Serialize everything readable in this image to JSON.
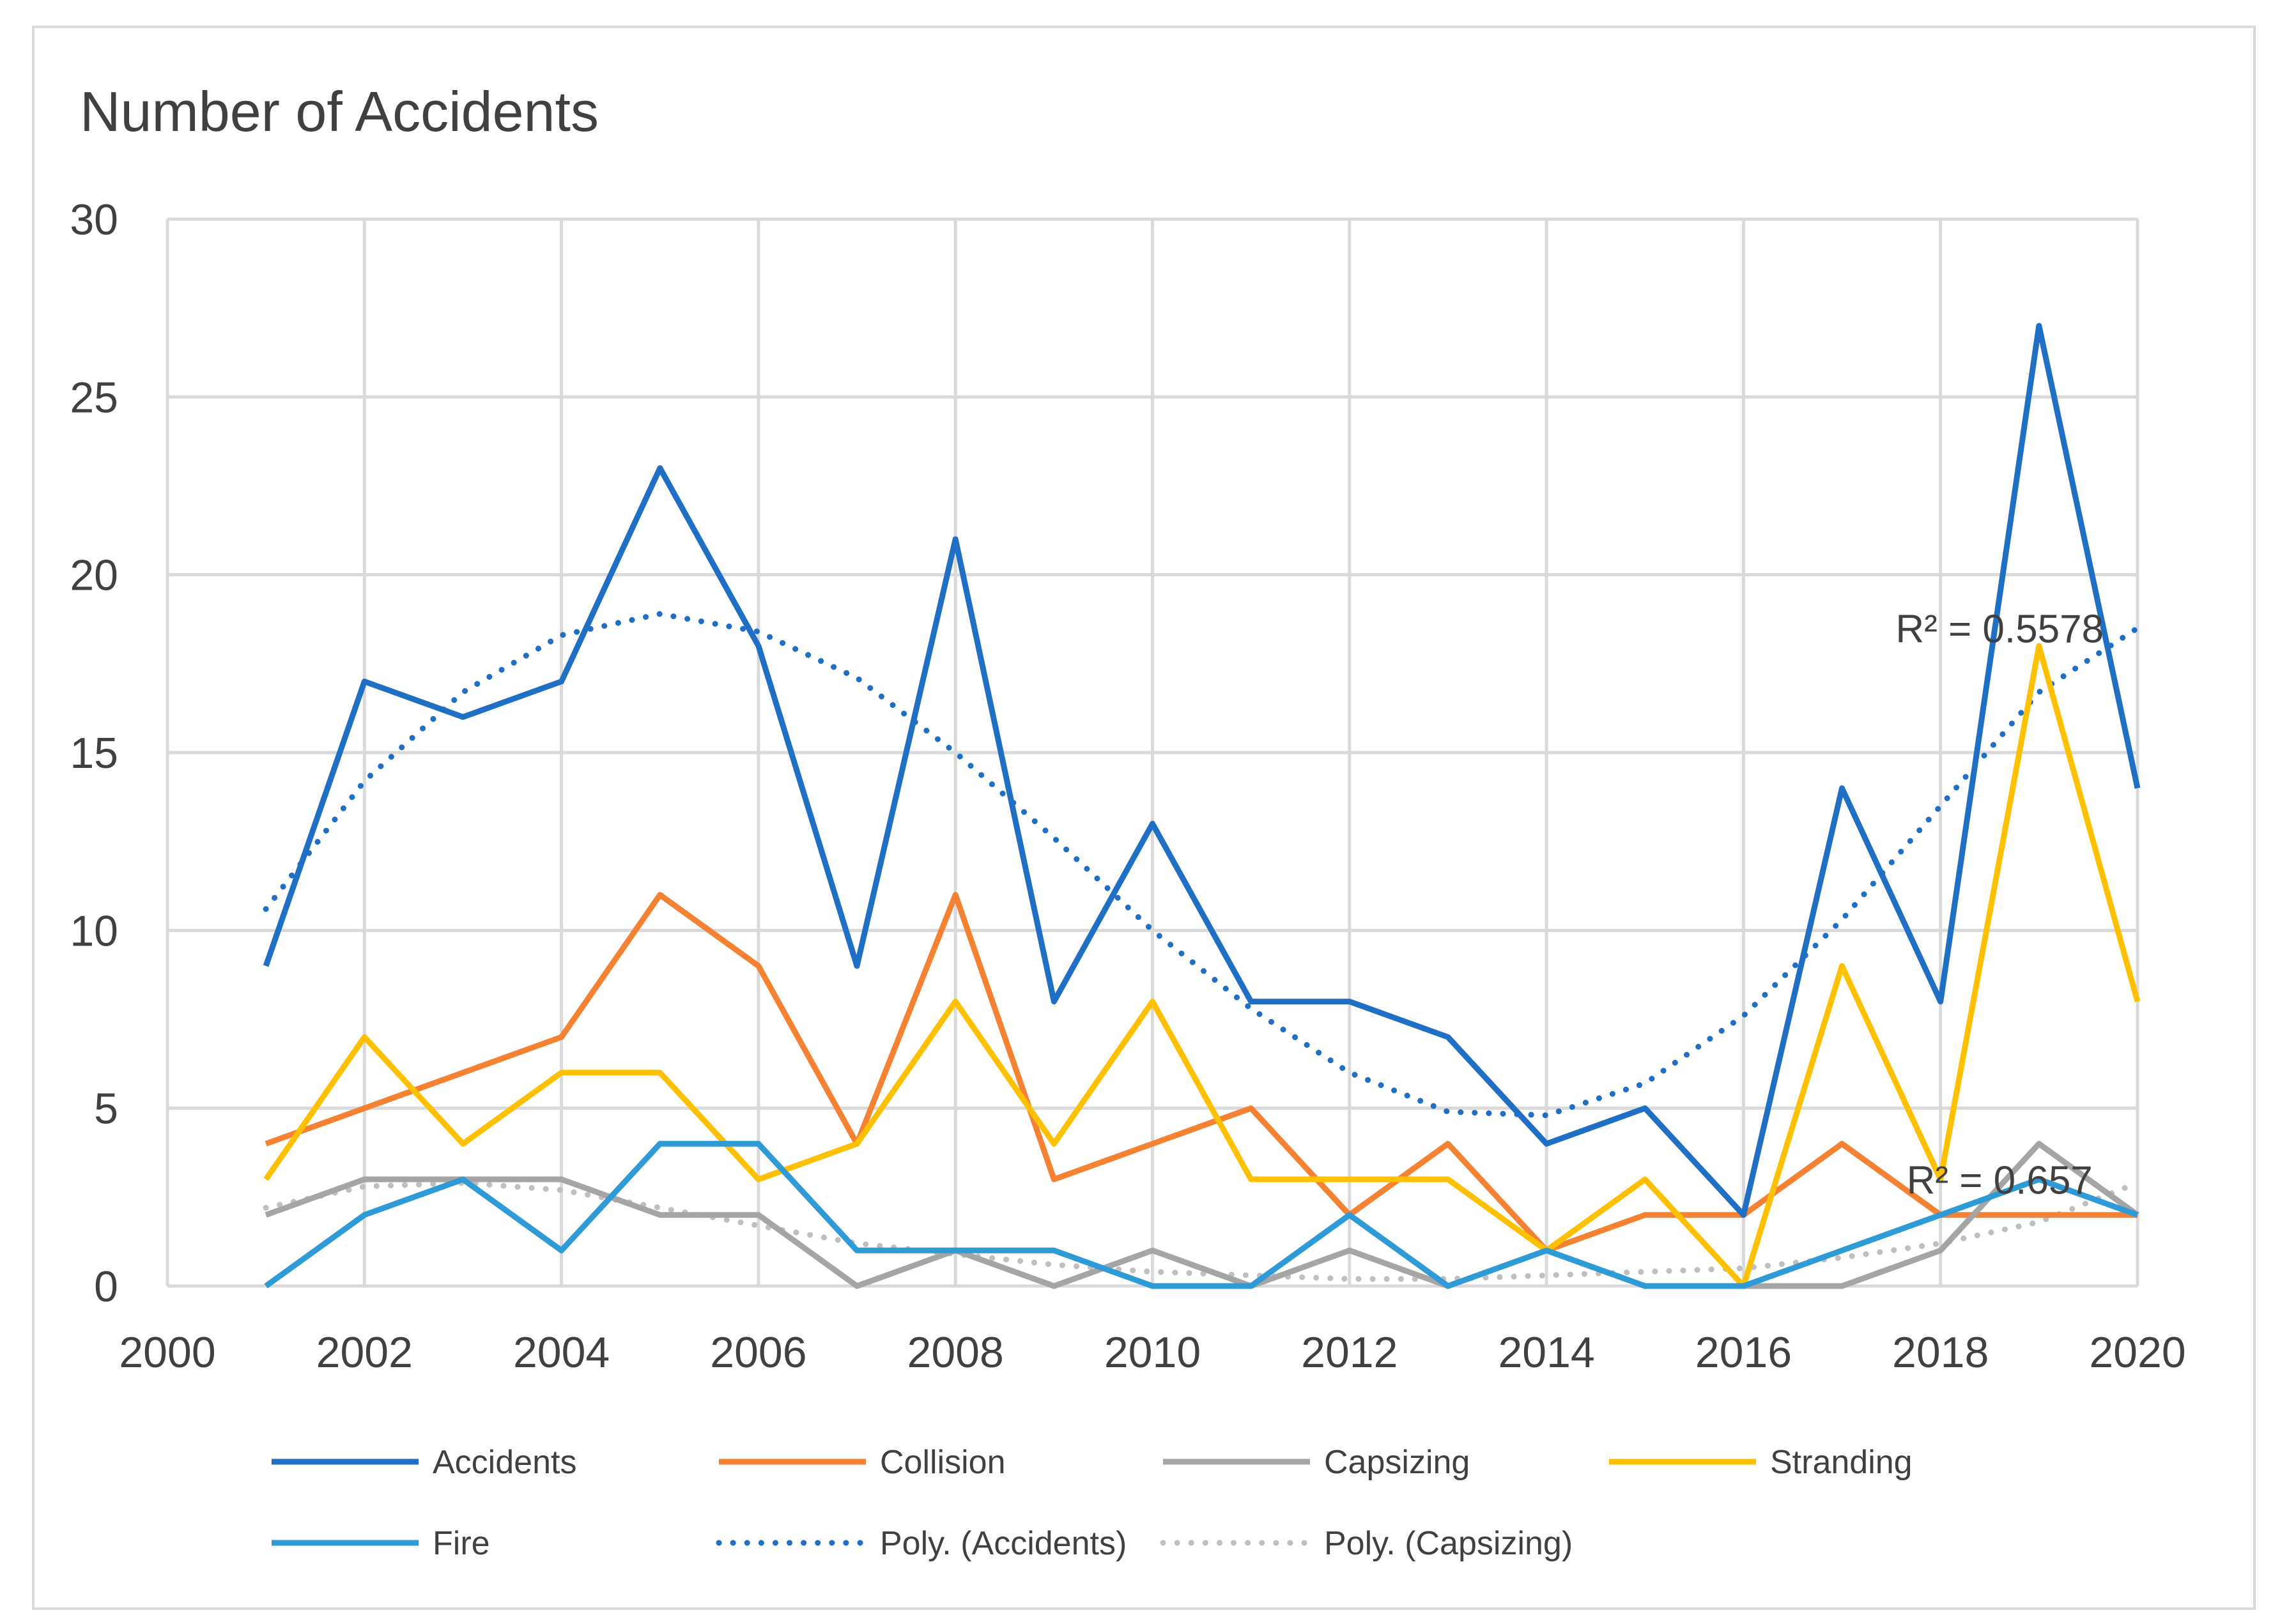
{
  "chart_data": {
    "type": "line",
    "title": "Number of Accidents",
    "xlabel": "",
    "ylabel": "",
    "xlim": [
      2000,
      2020
    ],
    "ylim": [
      0,
      30
    ],
    "xticks": [
      2000,
      2002,
      2004,
      2006,
      2008,
      2010,
      2012,
      2014,
      2016,
      2018,
      2020
    ],
    "yticks": [
      0,
      5,
      10,
      15,
      20,
      25,
      30
    ],
    "grid": true,
    "legend_position": "bottom",
    "x": [
      2001,
      2002,
      2003,
      2004,
      2005,
      2006,
      2007,
      2008,
      2009,
      2010,
      2011,
      2012,
      2013,
      2014,
      2015,
      2016,
      2017,
      2018,
      2019,
      2020
    ],
    "series": [
      {
        "name": "Accidents",
        "color": "#1f6fc5",
        "style": "solid",
        "values": [
          9,
          17,
          16,
          17,
          23,
          18,
          9,
          21,
          8,
          13,
          8,
          8,
          7,
          4,
          5,
          2,
          14,
          8,
          27,
          14
        ]
      },
      {
        "name": "Collision",
        "color": "#f58232",
        "style": "solid",
        "values": [
          4,
          5,
          6,
          7,
          11,
          9,
          4,
          11,
          3,
          4,
          5,
          2,
          4,
          1,
          2,
          2,
          4,
          2,
          2,
          2
        ]
      },
      {
        "name": "Capsizing",
        "color": "#a5a5a5",
        "style": "solid",
        "values": [
          2,
          3,
          3,
          3,
          2,
          2,
          0,
          1,
          0,
          1,
          0,
          1,
          0,
          1,
          0,
          0,
          0,
          1,
          4,
          2
        ]
      },
      {
        "name": "Stranding",
        "color": "#ffc000",
        "style": "solid",
        "values": [
          3,
          7,
          4,
          6,
          6,
          3,
          4,
          8,
          4,
          8,
          3,
          3,
          3,
          1,
          3,
          0,
          9,
          3,
          18,
          8
        ]
      },
      {
        "name": "Fire",
        "color": "#2e9bd6",
        "style": "solid",
        "values": [
          0,
          2,
          3,
          1,
          4,
          4,
          1,
          1,
          1,
          0,
          0,
          2,
          0,
          1,
          0,
          0,
          1,
          2,
          3,
          2
        ]
      },
      {
        "name": "Poly. (Accidents)",
        "color": "#1f6fc5",
        "style": "dotted",
        "values": [
          10.6,
          14.2,
          16.7,
          18.3,
          18.9,
          18.4,
          17.1,
          15.0,
          12.6,
          10.0,
          7.8,
          6.0,
          4.9,
          4.8,
          5.7,
          7.6,
          10.3,
          13.5,
          16.7,
          18.5
        ]
      },
      {
        "name": "Poly. (Capsizing)",
        "color": "#bfbfbf",
        "style": "dotted",
        "values": [
          2.2,
          2.8,
          2.9,
          2.7,
          2.2,
          1.7,
          1.2,
          0.9,
          0.6,
          0.4,
          0.3,
          0.2,
          0.2,
          0.3,
          0.4,
          0.5,
          0.8,
          1.2,
          1.8,
          2.9
        ]
      }
    ],
    "annotations": [
      {
        "text": "R² = 0.5578",
        "x": 2018.6,
        "y": 18.1
      },
      {
        "text": "R² = 0.657",
        "x": 2018.6,
        "y": 2.6
      }
    ]
  }
}
